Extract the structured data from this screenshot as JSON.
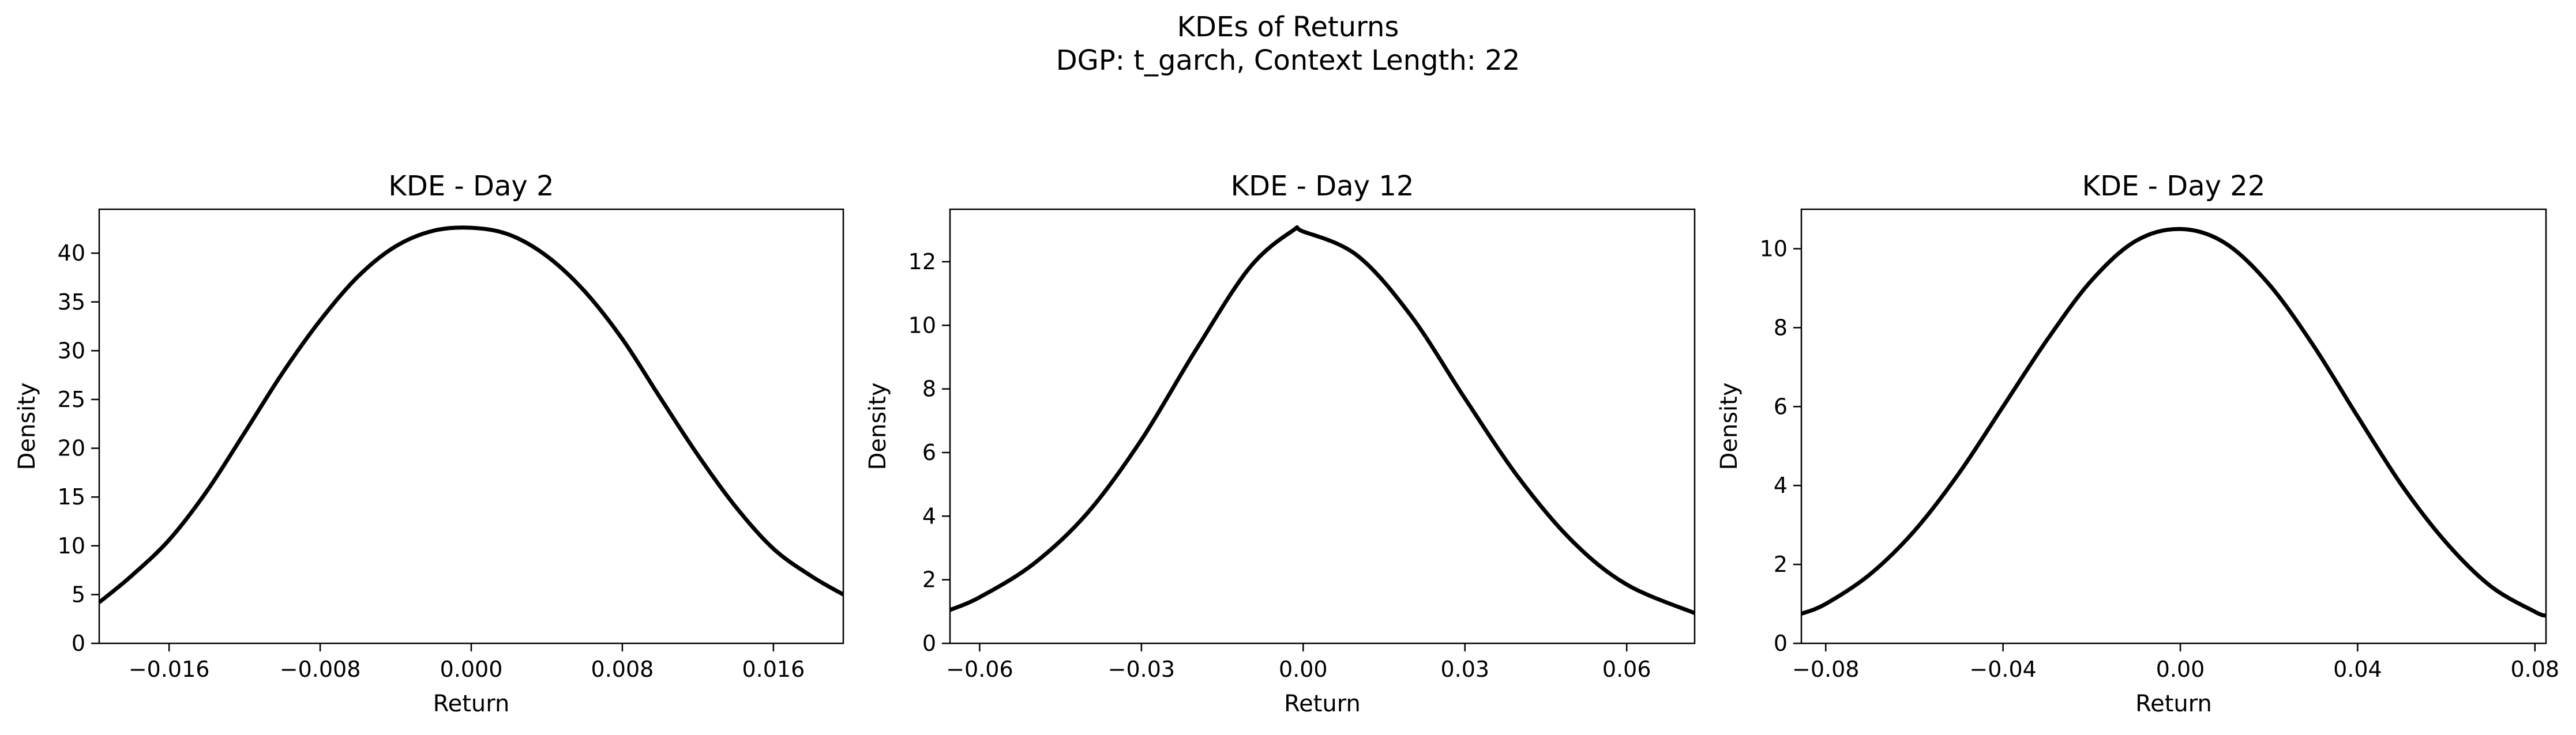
{
  "figure": {
    "title_line1": "KDEs of Returns",
    "title_line2": "DGP: t_garch, Context Length: 22"
  },
  "chart_data": [
    {
      "type": "line",
      "title": "KDE - Day 2",
      "xlabel": "Return",
      "ylabel": "Density",
      "xlim": [
        -0.0197,
        0.0197
      ],
      "ylim": [
        0,
        44.5
      ],
      "xticks": [
        -0.016,
        -0.008,
        0.0,
        0.008,
        0.016
      ],
      "xtick_labels": [
        "−0.016",
        "−0.008",
        "0.000",
        "0.008",
        "0.016"
      ],
      "yticks": [
        0,
        5,
        10,
        15,
        20,
        25,
        30,
        35,
        40
      ],
      "ytick_labels": [
        "0",
        "5",
        "10",
        "15",
        "20",
        "25",
        "30",
        "35",
        "40"
      ],
      "line_color": "#000000",
      "grid": false,
      "series": [
        {
          "x": [
            -0.0197,
            -0.018,
            -0.016,
            -0.014,
            -0.012,
            -0.01,
            -0.008,
            -0.006,
            -0.004,
            -0.002,
            0.0,
            0.002,
            0.004,
            0.006,
            0.008,
            0.01,
            0.012,
            0.014,
            0.016,
            0.018,
            0.0197
          ],
          "y": [
            4.2,
            6.9,
            10.6,
            15.6,
            21.6,
            27.7,
            33.1,
            37.6,
            40.7,
            42.3,
            42.6,
            41.9,
            39.7,
            36.1,
            31.2,
            25.2,
            19.3,
            14.0,
            9.7,
            6.9,
            5.0
          ]
        }
      ]
    },
    {
      "type": "line",
      "title": "KDE - Day 12",
      "xlabel": "Return",
      "ylabel": "Density",
      "xlim": [
        -0.0655,
        0.0726
      ],
      "ylim": [
        0,
        13.65
      ],
      "xticks": [
        -0.06,
        -0.03,
        0.0,
        0.03,
        0.06
      ],
      "xtick_labels": [
        "−0.06",
        "−0.03",
        "0.00",
        "0.03",
        "0.06"
      ],
      "yticks": [
        0,
        2,
        4,
        6,
        8,
        10,
        12
      ],
      "ytick_labels": [
        "0",
        "2",
        "4",
        "6",
        "8",
        "10",
        "12"
      ],
      "line_color": "#000000",
      "grid": false,
      "series": [
        {
          "x": [
            -0.0655,
            -0.06,
            -0.05,
            -0.04,
            -0.03,
            -0.02,
            -0.01,
            -0.002,
            0.0,
            0.01,
            0.02,
            0.03,
            0.04,
            0.05,
            0.06,
            0.0726
          ],
          "y": [
            1.05,
            1.45,
            2.5,
            4.1,
            6.4,
            9.2,
            11.8,
            12.97,
            12.95,
            12.2,
            10.3,
            7.7,
            5.2,
            3.2,
            1.85,
            0.95
          ]
        }
      ]
    },
    {
      "type": "line",
      "title": "KDE - Day 22",
      "xlabel": "Return",
      "ylabel": "Density",
      "xlim": [
        -0.0855,
        0.0825
      ],
      "ylim": [
        0,
        11.0
      ],
      "xticks": [
        -0.08,
        -0.04,
        0.0,
        0.04,
        0.08
      ],
      "xtick_labels": [
        "−0.08",
        "−0.04",
        "0.00",
        "0.04",
        "0.08"
      ],
      "yticks": [
        0,
        2,
        4,
        6,
        8,
        10
      ],
      "ytick_labels": [
        "0",
        "2",
        "4",
        "6",
        "8",
        "10"
      ],
      "line_color": "#000000",
      "grid": false,
      "series": [
        {
          "x": [
            -0.0855,
            -0.08,
            -0.07,
            -0.06,
            -0.05,
            -0.04,
            -0.03,
            -0.02,
            -0.01,
            0.0,
            0.01,
            0.02,
            0.03,
            0.04,
            0.05,
            0.06,
            0.07,
            0.08,
            0.0825
          ],
          "y": [
            0.75,
            1.0,
            1.75,
            2.85,
            4.3,
            6.0,
            7.7,
            9.2,
            10.2,
            10.5,
            10.15,
            9.1,
            7.55,
            5.75,
            4.0,
            2.55,
            1.45,
            0.8,
            0.7
          ]
        }
      ]
    }
  ]
}
